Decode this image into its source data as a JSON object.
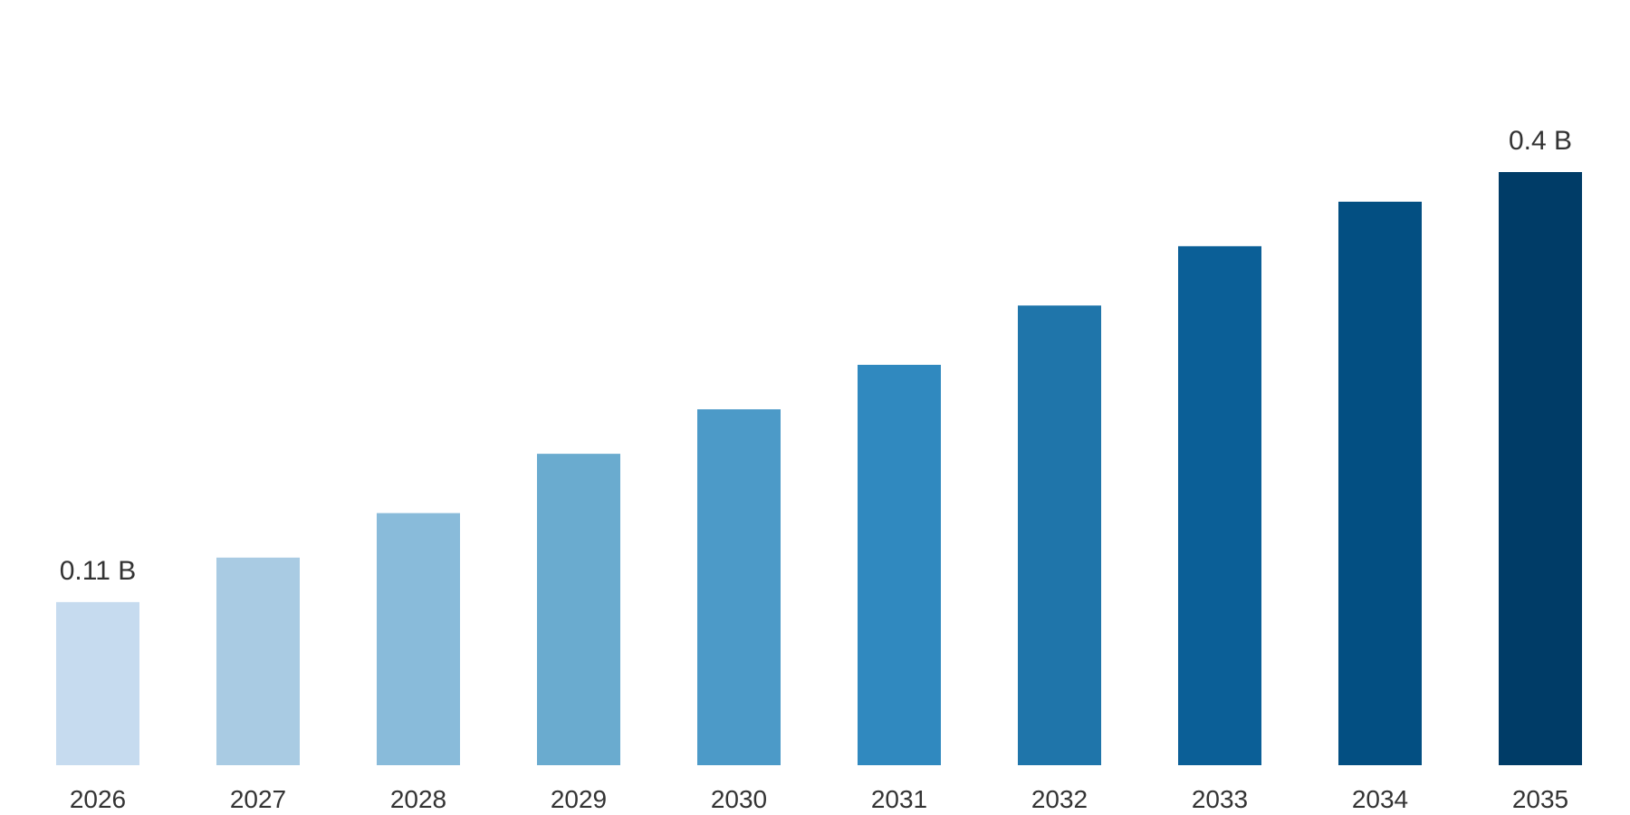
{
  "chart_data": {
    "type": "bar",
    "title": "",
    "xlabel": "",
    "ylabel": "",
    "unit": "B",
    "categories": [
      "2026",
      "2027",
      "2028",
      "2029",
      "2030",
      "2031",
      "2032",
      "2033",
      "2034",
      "2035"
    ],
    "values": [
      0.11,
      0.14,
      0.17,
      0.21,
      0.24,
      0.27,
      0.31,
      0.35,
      0.38,
      0.4
    ],
    "data_labels": [
      {
        "category": "2026",
        "text": "0.11 B"
      },
      {
        "category": "2035",
        "text": "0.4 B"
      }
    ],
    "colors": [
      "#c6dbef",
      "#a9cbe3",
      "#89bbda",
      "#6aabcf",
      "#4c9ac8",
      "#3089bf",
      "#1f75aa",
      "#0b5f97",
      "#034f82",
      "#003c67"
    ],
    "ylim": [
      0,
      0.4
    ],
    "grid": false,
    "legend": "none"
  }
}
